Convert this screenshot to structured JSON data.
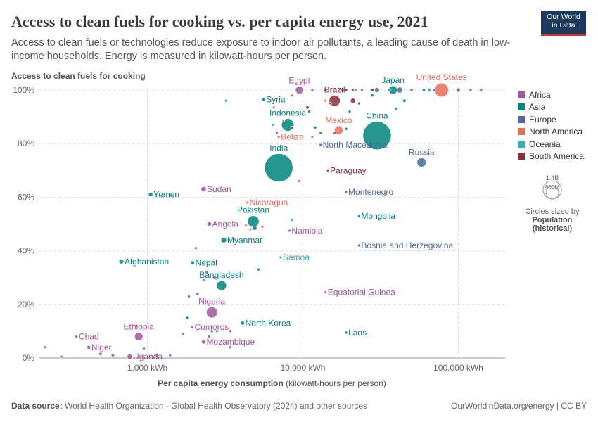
{
  "header": {
    "title": "Access to clean fuels for cooking vs. per capita energy use, 2021",
    "subtitle": "Access to clean fuels or technologies reduce exposure to indoor air pollutants, a leading cause of death in low-income households. Energy is measured in kilowatt-hours per person.",
    "logo_line1": "Our World",
    "logo_line2": "in Data"
  },
  "footer": {
    "source_label": "Data source:",
    "source_text": "World Health Organization - Global Health Observatory (2024) and other sources",
    "url": "OurWorldinData.org/energy | CC BY"
  },
  "size_key": {
    "big": "1.4B",
    "small": "600M",
    "caption": "Circles sized by",
    "caption_bold1": "Population",
    "caption_bold2": "(historical)"
  },
  "colors": {
    "Africa": "#a2559c",
    "Asia": "#00847e",
    "Europe": "#4c6a9c",
    "North America": "#e56e5a",
    "Oceania": "#38aaba",
    "South America": "#883039"
  },
  "chart_data": {
    "type": "scatter",
    "title": "Access to clean fuels for cooking vs. per capita energy use, 2021",
    "ylabel": "Access to clean fuels for cooking",
    "xlabel": "Per capita energy consumption",
    "xlabel_unit": "(kilowatt-hours per person)",
    "xscale": "log",
    "xlim": [
      200,
      200000
    ],
    "ylim": [
      0,
      100
    ],
    "x_ticks": [
      {
        "v": 1000,
        "label": "1,000 kWh"
      },
      {
        "v": 10000,
        "label": "10,000 kWh"
      },
      {
        "v": 100000,
        "label": "100,000 kWh"
      }
    ],
    "y_ticks": [
      {
        "v": 0,
        "label": "0%"
      },
      {
        "v": 20,
        "label": "20%"
      },
      {
        "v": 40,
        "label": "40%"
      },
      {
        "v": 60,
        "label": "60%"
      },
      {
        "v": 80,
        "label": "80%"
      },
      {
        "v": 100,
        "label": "100%"
      }
    ],
    "legend": [
      "Africa",
      "Asia",
      "Europe",
      "North America",
      "Oceania",
      "South America"
    ],
    "points": [
      {
        "name": "China",
        "x": 30000,
        "y": 83,
        "pop": 1410,
        "region": "Asia",
        "label": true
      },
      {
        "name": "India",
        "x": 7000,
        "y": 71,
        "pop": 1400,
        "region": "Asia",
        "label": true
      },
      {
        "name": "United States",
        "x": 78000,
        "y": 100,
        "pop": 336,
        "region": "North America",
        "label": true
      },
      {
        "name": "Indonesia",
        "x": 8000,
        "y": 87,
        "pop": 273,
        "region": "Asia",
        "label": true
      },
      {
        "name": "Pakistan",
        "x": 4800,
        "y": 51,
        "pop": 231,
        "region": "Asia",
        "label": true
      },
      {
        "name": "Nigeria",
        "x": 2600,
        "y": 17,
        "pop": 213,
        "region": "Africa",
        "label": true
      },
      {
        "name": "Brazil",
        "x": 16000,
        "y": 96,
        "pop": 214,
        "region": "South America",
        "label": true
      },
      {
        "name": "Bangladesh",
        "x": 3000,
        "y": 27,
        "pop": 169,
        "region": "Asia",
        "label": true
      },
      {
        "name": "Russia",
        "x": 58000,
        "y": 73,
        "pop": 145,
        "region": "Europe",
        "label": true
      },
      {
        "name": "Ethiopia",
        "x": 880,
        "y": 8,
        "pop": 120,
        "region": "Africa",
        "label": true
      },
      {
        "name": "Mexico",
        "x": 17000,
        "y": 85,
        "pop": 127,
        "region": "North America",
        "label": true
      },
      {
        "name": "Japan",
        "x": 38000,
        "y": 100,
        "pop": 125,
        "region": "Asia",
        "label": true
      },
      {
        "name": "Egypt",
        "x": 9500,
        "y": 100,
        "pop": 109,
        "region": "Africa",
        "label": true
      },
      {
        "name": "Sudan",
        "x": 2300,
        "y": 63,
        "pop": 46,
        "region": "Africa",
        "label": true
      },
      {
        "name": "Uganda",
        "x": 770,
        "y": 0.5,
        "pop": 46,
        "region": "Africa",
        "label": true
      },
      {
        "name": "Angola",
        "x": 2500,
        "y": 50,
        "pop": 34,
        "region": "Africa",
        "label": true
      },
      {
        "name": "Afghanistan",
        "x": 680,
        "y": 36,
        "pop": 40,
        "region": "Asia",
        "label": true
      },
      {
        "name": "Mozambique",
        "x": 2300,
        "y": 6,
        "pop": 32,
        "region": "Africa",
        "label": true
      },
      {
        "name": "Niger",
        "x": 420,
        "y": 4,
        "pop": 25,
        "region": "Africa",
        "label": true
      },
      {
        "name": "North Korea",
        "x": 4100,
        "y": 13,
        "pop": 26,
        "region": "Asia",
        "label": true
      },
      {
        "name": "Nepal",
        "x": 1950,
        "y": 35.5,
        "pop": 30,
        "region": "Asia",
        "label": true
      },
      {
        "name": "Myanmar",
        "x": 3100,
        "y": 44,
        "pop": 54,
        "region": "Asia",
        "label": true
      },
      {
        "name": "Yemen",
        "x": 1050,
        "y": 61,
        "pop": 32,
        "region": "Asia",
        "label": true
      },
      {
        "name": "Syria",
        "x": 5600,
        "y": 96.5,
        "pop": 21,
        "region": "Asia",
        "label": true
      },
      {
        "name": "Mongolia",
        "x": 23000,
        "y": 53,
        "pop": 3.4,
        "region": "Asia",
        "label": true
      },
      {
        "name": "Laos",
        "x": 19000,
        "y": 9.5,
        "pop": 7.4,
        "region": "Asia",
        "label": true
      },
      {
        "name": "Chad",
        "x": 350,
        "y": 8,
        "pop": 17,
        "region": "Africa",
        "label": true
      },
      {
        "name": "Comoros",
        "x": 1950,
        "y": 11.5,
        "pop": 0.8,
        "region": "Africa",
        "label": true
      },
      {
        "name": "Equatorial Guinea",
        "x": 14000,
        "y": 24.5,
        "pop": 1.6,
        "region": "Africa",
        "label": true
      },
      {
        "name": "Namibia",
        "x": 8200,
        "y": 47.5,
        "pop": 2.5,
        "region": "Africa",
        "label": true
      },
      {
        "name": "Samoa",
        "x": 7200,
        "y": 37.5,
        "pop": 0.2,
        "region": "Oceania",
        "label": true
      },
      {
        "name": "Nicaragua",
        "x": 4400,
        "y": 58,
        "pop": 6.8,
        "region": "North America",
        "label": true
      },
      {
        "name": "Belize",
        "x": 7000,
        "y": 82.5,
        "pop": 0.4,
        "region": "North America",
        "label": true
      },
      {
        "name": "North Macedonia",
        "x": 13000,
        "y": 79.5,
        "pop": 2.1,
        "region": "Europe",
        "label": true
      },
      {
        "name": "Paraguay",
        "x": 14500,
        "y": 70,
        "pop": 6.7,
        "region": "South America",
        "label": true
      },
      {
        "name": "Montenegro",
        "x": 19000,
        "y": 62,
        "pop": 0.6,
        "region": "Europe",
        "label": true
      },
      {
        "name": "Bosnia and Herzegovina",
        "x": 23000,
        "y": 42,
        "pop": 3.3,
        "region": "Europe",
        "label": true
      },
      {
        "name": "",
        "x": 500,
        "y": 1.5,
        "pop": 20,
        "region": "Africa"
      },
      {
        "name": "",
        "x": 600,
        "y": 1,
        "pop": 18,
        "region": "Africa"
      },
      {
        "name": "",
        "x": 280,
        "y": 0.5,
        "pop": 5,
        "region": "Africa"
      },
      {
        "name": "",
        "x": 220,
        "y": 4,
        "pop": 2,
        "region": "Africa"
      },
      {
        "name": "",
        "x": 950,
        "y": 3.5,
        "pop": 6,
        "region": "Africa"
      },
      {
        "name": "",
        "x": 1400,
        "y": 1,
        "pop": 3,
        "region": "Africa"
      },
      {
        "name": "",
        "x": 1150,
        "y": 1,
        "pop": 4,
        "region": "Africa"
      },
      {
        "name": "",
        "x": 1700,
        "y": 9,
        "pop": 3,
        "region": "Africa"
      },
      {
        "name": "",
        "x": 2100,
        "y": 24,
        "pop": 20,
        "region": "Africa"
      },
      {
        "name": "",
        "x": 1850,
        "y": 23,
        "pop": 8,
        "region": "Africa"
      },
      {
        "name": "",
        "x": 2400,
        "y": 32,
        "pop": 6,
        "region": "Africa"
      },
      {
        "name": "",
        "x": 2700,
        "y": 30,
        "pop": 3,
        "region": "Africa"
      },
      {
        "name": "",
        "x": 2050,
        "y": 41,
        "pop": 2,
        "region": "Africa"
      },
      {
        "name": "",
        "x": 3400,
        "y": 10,
        "pop": 5,
        "region": "Africa"
      },
      {
        "name": "",
        "x": 3400,
        "y": 4,
        "pop": 2,
        "region": "Africa"
      },
      {
        "name": "",
        "x": 2800,
        "y": 10,
        "pop": 3,
        "region": "Africa"
      },
      {
        "name": "",
        "x": 9500,
        "y": 66,
        "pop": 1,
        "region": "Africa"
      },
      {
        "name": "",
        "x": 6800,
        "y": 84,
        "pop": 1,
        "region": "Africa"
      },
      {
        "name": "",
        "x": 2500,
        "y": 8,
        "pop": 4,
        "region": "Africa"
      },
      {
        "name": "",
        "x": 850,
        "y": 12,
        "pop": 2,
        "region": "Africa"
      },
      {
        "name": "",
        "x": 2300,
        "y": 29,
        "pop": 4,
        "region": "Africa"
      },
      {
        "name": "",
        "x": 11500,
        "y": 100,
        "pop": 10,
        "region": "Africa"
      },
      {
        "name": "",
        "x": 21000,
        "y": 100,
        "pop": 10,
        "region": "Africa"
      },
      {
        "name": "",
        "x": 5200,
        "y": 33,
        "pop": 4,
        "region": "Asia"
      },
      {
        "name": "",
        "x": 1800,
        "y": 15,
        "pop": 2,
        "region": "Asia"
      },
      {
        "name": "",
        "x": 2600,
        "y": 10,
        "pop": 3,
        "region": "Asia"
      },
      {
        "name": "",
        "x": 4900,
        "y": 48.5,
        "pop": 35,
        "region": "Asia"
      },
      {
        "name": "",
        "x": 19000,
        "y": 85.5,
        "pop": 15,
        "region": "Asia"
      },
      {
        "name": "",
        "x": 11000,
        "y": 92,
        "pop": 10,
        "region": "Asia"
      },
      {
        "name": "",
        "x": 28000,
        "y": 98,
        "pop": 8,
        "region": "Asia"
      },
      {
        "name": "",
        "x": 45000,
        "y": 96,
        "pop": 20,
        "region": "Asia"
      },
      {
        "name": "",
        "x": 60000,
        "y": 100,
        "pop": 20,
        "region": "Asia"
      },
      {
        "name": "",
        "x": 100000,
        "y": 100,
        "pop": 5,
        "region": "Asia"
      },
      {
        "name": "",
        "x": 140000,
        "y": 100,
        "pop": 2,
        "region": "Asia"
      },
      {
        "name": "",
        "x": 20000,
        "y": 92,
        "pop": 5,
        "region": "Asia"
      },
      {
        "name": "",
        "x": 14000,
        "y": 100,
        "pop": 5,
        "region": "Asia"
      },
      {
        "name": "",
        "x": 40000,
        "y": 93,
        "pop": 3,
        "region": "Asia"
      },
      {
        "name": "",
        "x": 12000,
        "y": 86,
        "pop": 3,
        "region": "Asia"
      },
      {
        "name": "",
        "x": 24000,
        "y": 100,
        "pop": 10,
        "region": "Europe"
      },
      {
        "name": "",
        "x": 30000,
        "y": 100,
        "pop": 40,
        "region": "Europe"
      },
      {
        "name": "",
        "x": 42000,
        "y": 100,
        "pop": 60,
        "region": "Europe"
      },
      {
        "name": "",
        "x": 36000,
        "y": 100,
        "pop": 15,
        "region": "Europe"
      },
      {
        "name": "",
        "x": 50000,
        "y": 100,
        "pop": 10,
        "region": "Europe"
      },
      {
        "name": "",
        "x": 70000,
        "y": 100,
        "pop": 10,
        "region": "Europe"
      },
      {
        "name": "",
        "x": 120000,
        "y": 100,
        "pop": 3,
        "region": "Europe"
      },
      {
        "name": "",
        "x": 18000,
        "y": 100,
        "pop": 5,
        "region": "Europe"
      },
      {
        "name": "",
        "x": 15000,
        "y": 95,
        "pop": 4,
        "region": "Europe"
      },
      {
        "name": "",
        "x": 16000,
        "y": 84,
        "pop": 3,
        "region": "Europe"
      },
      {
        "name": "",
        "x": 13000,
        "y": 84,
        "pop": 2,
        "region": "Europe"
      },
      {
        "name": "",
        "x": 8500,
        "y": 98,
        "pop": 1,
        "region": "North America"
      },
      {
        "name": "",
        "x": 5500,
        "y": 49,
        "pop": 6,
        "region": "North America"
      },
      {
        "name": "",
        "x": 4600,
        "y": 48,
        "pop": 2,
        "region": "North America"
      },
      {
        "name": "",
        "x": 6500,
        "y": 93.5,
        "pop": 3,
        "region": "North America"
      },
      {
        "name": "",
        "x": 11500,
        "y": 82.5,
        "pop": 2,
        "region": "North America"
      },
      {
        "name": "",
        "x": 14000,
        "y": 96,
        "pop": 3,
        "region": "North America"
      },
      {
        "name": "",
        "x": 22000,
        "y": 100,
        "pop": 4,
        "region": "North America"
      },
      {
        "name": "",
        "x": 100000,
        "y": 100,
        "pop": 38,
        "region": "North America"
      },
      {
        "name": "",
        "x": 7500,
        "y": 88.5,
        "pop": 2,
        "region": "North America"
      },
      {
        "name": "",
        "x": 4300,
        "y": 49.5,
        "pop": 3,
        "region": "North America"
      },
      {
        "name": "",
        "x": 3200,
        "y": 96,
        "pop": 0.3,
        "region": "Oceania"
      },
      {
        "name": "",
        "x": 2800,
        "y": 10,
        "pop": 0.5,
        "region": "Oceania"
      },
      {
        "name": "",
        "x": 6400,
        "y": 87,
        "pop": 1,
        "region": "Oceania"
      },
      {
        "name": "",
        "x": 8500,
        "y": 51.5,
        "pop": 0.3,
        "region": "Oceania"
      },
      {
        "name": "",
        "x": 65000,
        "y": 100,
        "pop": 26,
        "region": "Oceania"
      },
      {
        "name": "",
        "x": 36000,
        "y": 100,
        "pop": 5,
        "region": "Oceania"
      },
      {
        "name": "",
        "x": 10700,
        "y": 93.5,
        "pop": 18,
        "region": "South America"
      },
      {
        "name": "",
        "x": 8500,
        "y": 86,
        "pop": 11,
        "region": "South America"
      },
      {
        "name": "",
        "x": 21000,
        "y": 96,
        "pop": 45,
        "region": "South America"
      },
      {
        "name": "",
        "x": 28000,
        "y": 100,
        "pop": 19,
        "region": "South America"
      },
      {
        "name": "",
        "x": 23000,
        "y": 95,
        "pop": 3.4,
        "region": "South America"
      },
      {
        "name": "",
        "x": 19000,
        "y": 100,
        "pop": 1,
        "region": "South America"
      }
    ]
  }
}
